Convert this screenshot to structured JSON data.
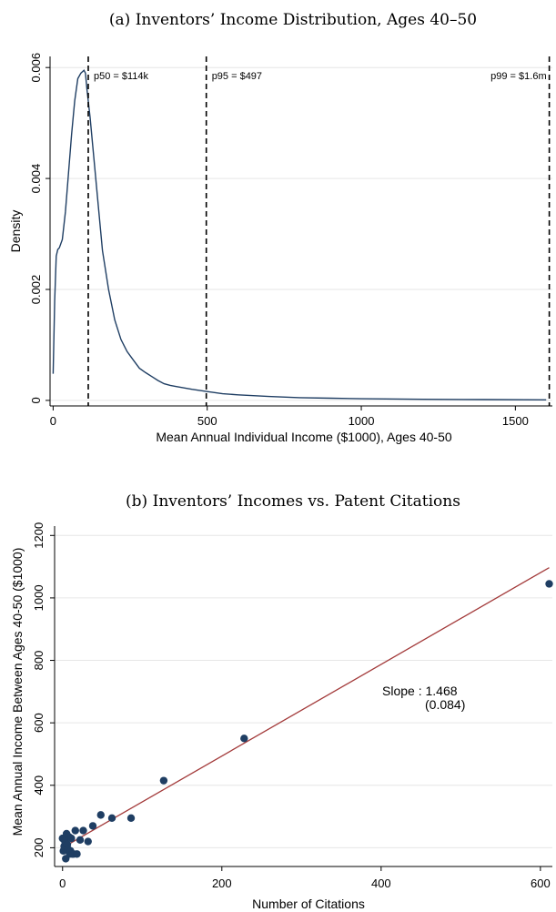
{
  "chart_data": [
    {
      "type": "line",
      "title": "(a) Inventors’ Income Distribution, Ages 40–50",
      "xlabel": "Mean Annual Individual Income ($1000), Ages 40-50",
      "ylabel": "Density",
      "xlim": [
        -10,
        1620
      ],
      "ylim": [
        -0.0001,
        0.0062
      ],
      "xticks": [
        0,
        500,
        1000,
        1500
      ],
      "xtick_labels": [
        "0",
        "500",
        "1000",
        "1500"
      ],
      "yticks": [
        0,
        0.002,
        0.004,
        0.006
      ],
      "ytick_labels": [
        "0",
        "0.002",
        "0.004",
        "0.006"
      ],
      "grid": "horizontal",
      "line_color": "#1f3e63",
      "series": [
        {
          "x": [
            0,
            5,
            10,
            15,
            20,
            30,
            40,
            50,
            60,
            70,
            80,
            90,
            100,
            105,
            110,
            120,
            130,
            140,
            150,
            160,
            180,
            200,
            220,
            240,
            260,
            280,
            300,
            320,
            340,
            360,
            380,
            400,
            450,
            500,
            550,
            600,
            700,
            800,
            900,
            1000,
            1200,
            1400,
            1600
          ],
          "y": [
            0.00048,
            0.0018,
            0.0026,
            0.00272,
            0.00275,
            0.0029,
            0.0034,
            0.0041,
            0.0048,
            0.0054,
            0.0058,
            0.0059,
            0.00595,
            0.0059,
            0.0056,
            0.0051,
            0.0045,
            0.0039,
            0.0033,
            0.0027,
            0.002,
            0.00145,
            0.0011,
            0.00088,
            0.00073,
            0.00058,
            0.0005,
            0.00043,
            0.00036,
            0.0003,
            0.00027,
            0.00025,
            0.0002,
            0.00016,
            0.00012,
            0.0001,
            7e-05,
            5e-05,
            4e-05,
            3e-05,
            2e-05,
            1.5e-05,
            1e-05
          ]
        }
      ],
      "vlines": [
        {
          "x": 114,
          "label": "p50 = $114k"
        },
        {
          "x": 497,
          "label": "p95 = $497"
        },
        {
          "x": 1610,
          "label": "p99 = $1.6m"
        }
      ]
    },
    {
      "type": "scatter",
      "title": "(b) Inventors’ Incomes vs. Patent Citations",
      "xlabel": "Number of Citations",
      "ylabel": "Mean Annual Income Between Ages 40-50 ($1000)",
      "xlim": [
        -10,
        615
      ],
      "ylim": [
        140,
        1230
      ],
      "xticks": [
        0,
        200,
        400,
        600
      ],
      "xtick_labels": [
        "0",
        "200",
        "400",
        "600"
      ],
      "yticks": [
        200,
        400,
        600,
        800,
        1000,
        1200
      ],
      "ytick_labels": [
        "200",
        "400",
        "600",
        "800",
        "1000",
        "1200"
      ],
      "grid": "horizontal",
      "point_color": "#1f3e63",
      "fit_color": "#a33a3a",
      "points": [
        {
          "x": 0,
          "y": 230
        },
        {
          "x": 1,
          "y": 190
        },
        {
          "x": 2,
          "y": 205
        },
        {
          "x": 3,
          "y": 220
        },
        {
          "x": 4,
          "y": 165
        },
        {
          "x": 5,
          "y": 245
        },
        {
          "x": 6,
          "y": 210
        },
        {
          "x": 7,
          "y": 195
        },
        {
          "x": 8,
          "y": 235
        },
        {
          "x": 9,
          "y": 180
        },
        {
          "x": 10,
          "y": 190
        },
        {
          "x": 11,
          "y": 230
        },
        {
          "x": 12,
          "y": 180
        },
        {
          "x": 14,
          "y": 180
        },
        {
          "x": 16,
          "y": 255
        },
        {
          "x": 18,
          "y": 180
        },
        {
          "x": 22,
          "y": 225
        },
        {
          "x": 26,
          "y": 255
        },
        {
          "x": 32,
          "y": 220
        },
        {
          "x": 38,
          "y": 270
        },
        {
          "x": 48,
          "y": 305
        },
        {
          "x": 62,
          "y": 295
        },
        {
          "x": 86,
          "y": 295
        },
        {
          "x": 127,
          "y": 415
        },
        {
          "x": 228,
          "y": 550
        },
        {
          "x": 611,
          "y": 1045
        }
      ],
      "fit": {
        "x": [
          0,
          611
        ],
        "y": [
          200,
          1097
        ]
      },
      "annotation": {
        "line1": "Slope : 1.468",
        "line2": "(0.084)"
      }
    }
  ]
}
